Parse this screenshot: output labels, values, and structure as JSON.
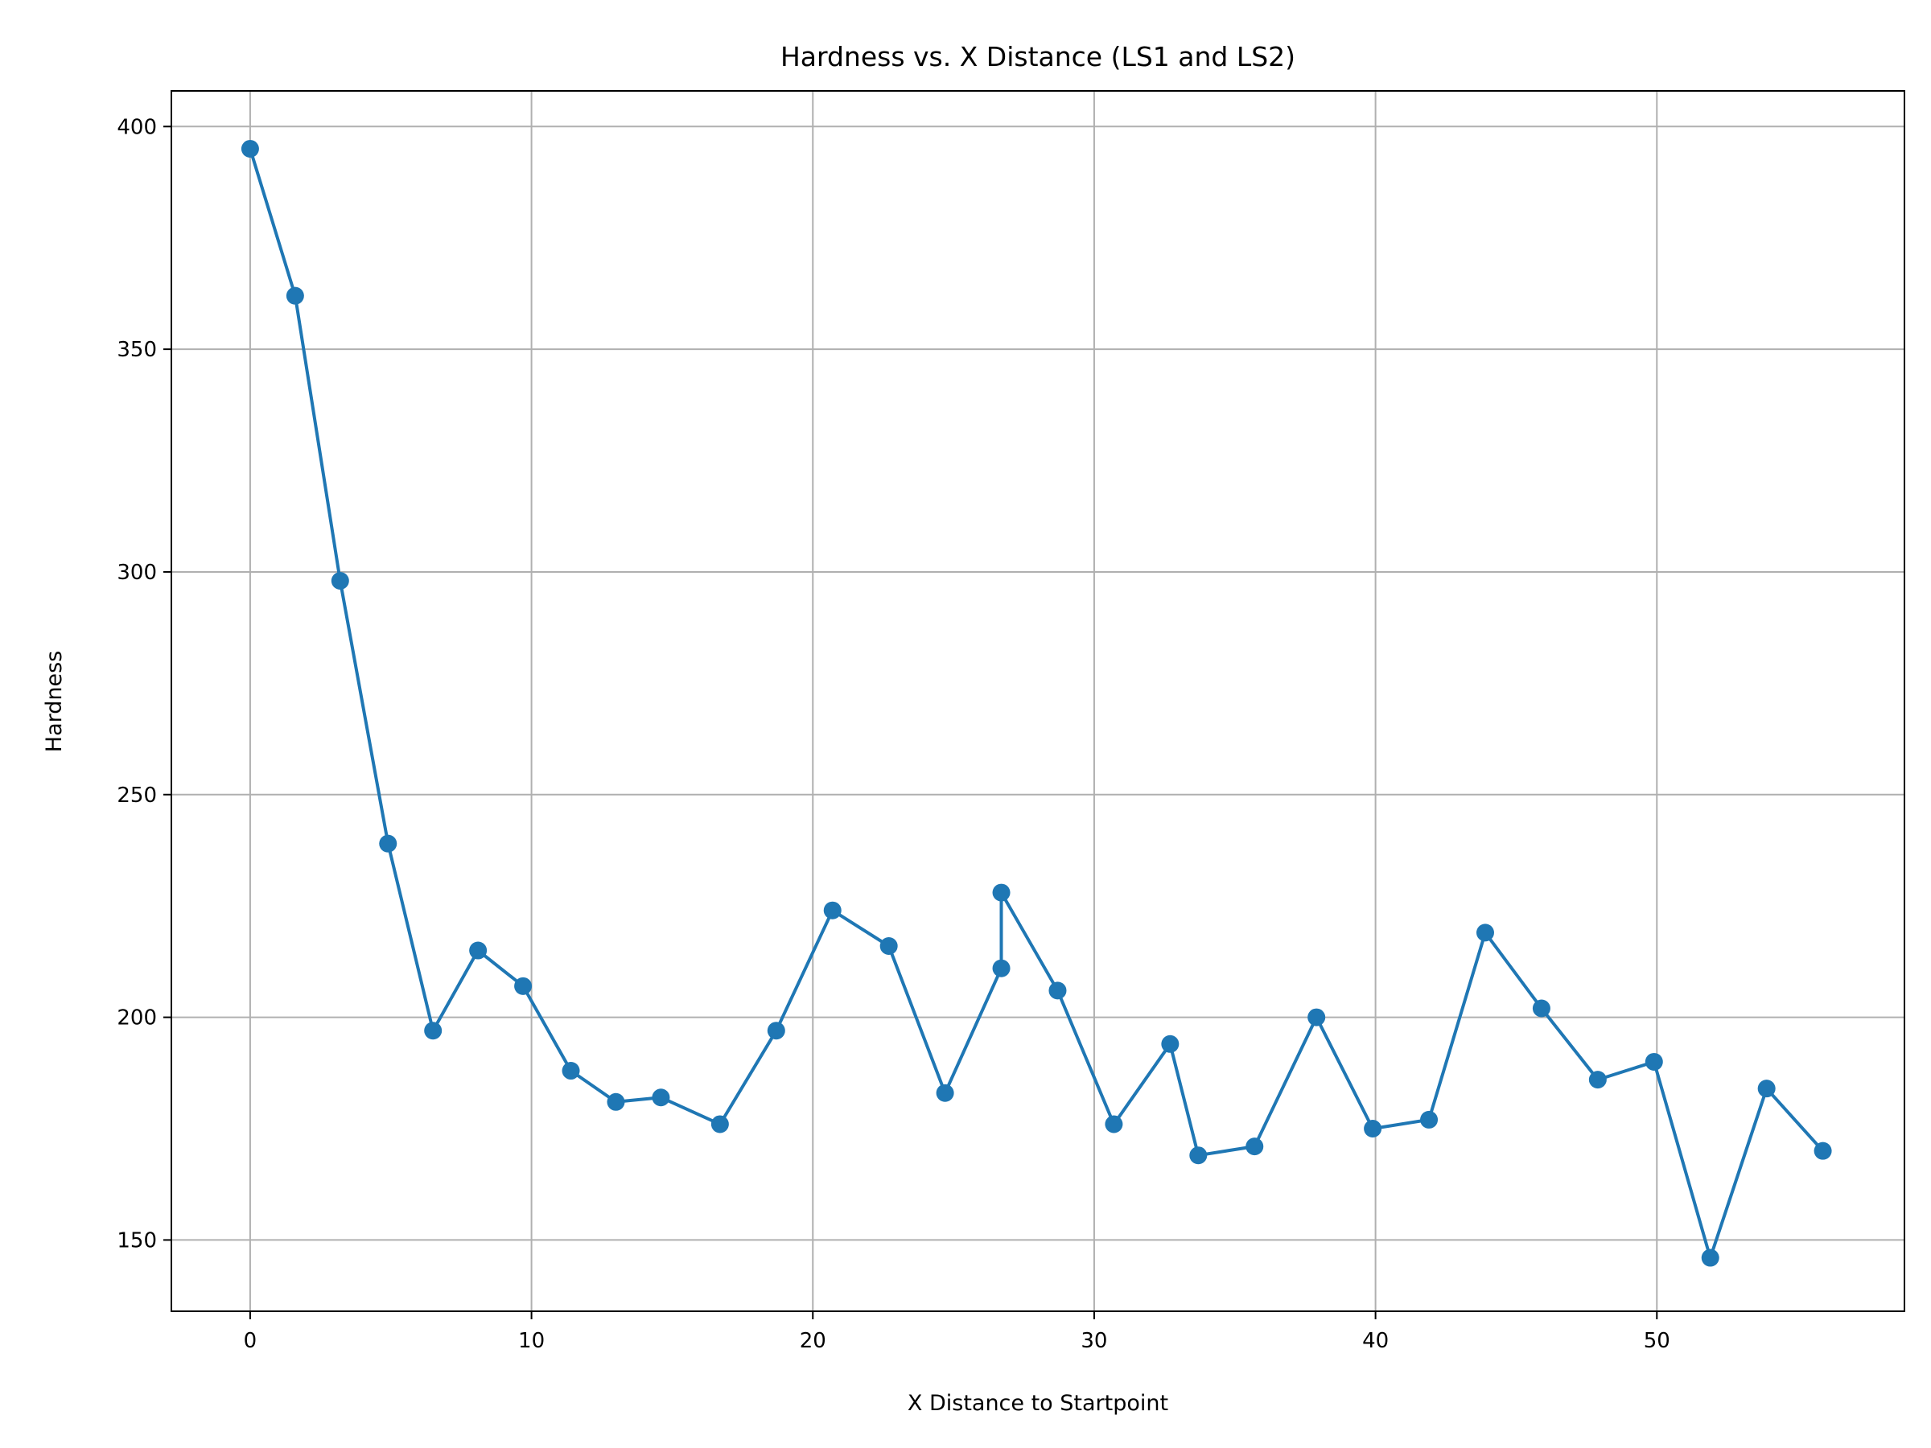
{
  "chart_data": {
    "type": "line",
    "title": "Hardness vs. X Distance (LS1 and LS2)",
    "xlabel": "X Distance to Startpoint",
    "ylabel": "Hardness",
    "xlim": [
      -2.8,
      58.8
    ],
    "ylim": [
      134,
      408
    ],
    "xticks": [
      0,
      10,
      20,
      30,
      40,
      50
    ],
    "yticks": [
      150,
      200,
      250,
      300,
      350,
      400
    ],
    "grid": true,
    "marker": "circle",
    "series": [
      {
        "color": "#1f77b4",
        "points": [
          [
            0,
            395
          ],
          [
            1.6,
            362
          ],
          [
            3.2,
            298
          ],
          [
            4.9,
            239
          ],
          [
            6.5,
            197
          ],
          [
            8.1,
            215
          ],
          [
            9.7,
            207
          ],
          [
            11.4,
            188
          ],
          [
            13.0,
            181
          ],
          [
            14.6,
            182
          ],
          [
            16.7,
            176
          ],
          [
            18.7,
            197
          ],
          [
            20.7,
            224
          ],
          [
            22.7,
            216
          ],
          [
            24.7,
            183
          ],
          [
            26.7,
            211
          ],
          [
            26.7,
            228
          ],
          [
            28.7,
            206
          ],
          [
            30.7,
            176
          ],
          [
            32.7,
            194
          ],
          [
            33.7,
            169
          ],
          [
            35.7,
            171
          ],
          [
            37.9,
            200
          ],
          [
            39.9,
            175
          ],
          [
            41.9,
            177
          ],
          [
            43.9,
            219
          ],
          [
            45.9,
            202
          ],
          [
            47.9,
            186
          ],
          [
            49.9,
            190
          ],
          [
            51.9,
            146
          ],
          [
            53.9,
            184
          ],
          [
            55.9,
            170
          ]
        ]
      }
    ]
  }
}
